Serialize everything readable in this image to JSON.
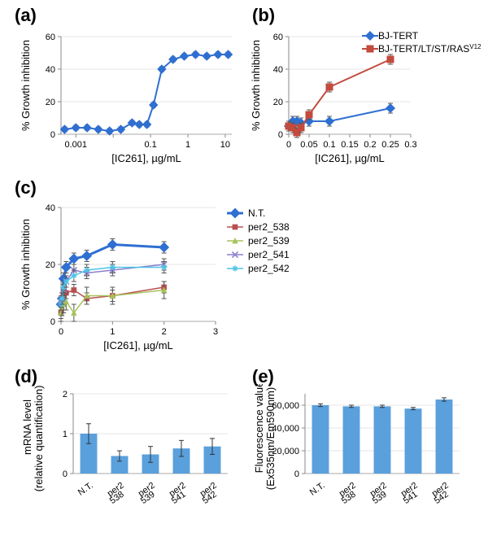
{
  "labels": {
    "a": "(a)",
    "b": "(b)",
    "c": "(c)",
    "d": "(d)",
    "e": "(e)"
  },
  "a": {
    "type": "sigmoid-line-log-x",
    "xlabel": "[IC261], µg/mL",
    "ylabel": "% Growth inhibition",
    "x_ticks": [
      0.001,
      0.01,
      0.1,
      1,
      10
    ],
    "x_tick_labels": [
      "0.001",
      "",
      "0.1",
      "1",
      "10"
    ],
    "y_ticks": [
      0,
      20,
      40,
      60
    ],
    "ylim": [
      0,
      60
    ],
    "series_color": "#2f6fd1",
    "line_width": 2,
    "marker": "diamond",
    "marker_size": 5,
    "err": 1.5,
    "x": [
      0.0005,
      0.001,
      0.002,
      0.004,
      0.008,
      0.016,
      0.032,
      0.05,
      0.08,
      0.12,
      0.2,
      0.4,
      0.8,
      1.6,
      3.2,
      6.4,
      12
    ],
    "y": [
      3,
      4,
      4,
      3,
      2,
      3,
      7,
      6,
      6,
      18,
      40,
      46,
      48,
      49,
      48,
      49,
      49
    ]
  },
  "b": {
    "type": "line-two-series",
    "xlabel": "[IC261], µg/mL",
    "ylabel": "% Growth inhibition",
    "x_ticks": [
      0,
      0.05,
      0.1,
      0.15,
      0.2,
      0.25,
      0.3
    ],
    "y_ticks": [
      0,
      20,
      40,
      60
    ],
    "ylim": [
      0,
      60
    ],
    "series": [
      {
        "name": "BJ-TERT",
        "color": "#2f6fd1",
        "marker": "diamond",
        "marker_size": 8,
        "line_width": 2,
        "err": 3,
        "x": [
          0,
          0.01,
          0.02,
          0.03,
          0.05,
          0.1,
          0.25
        ],
        "y": [
          5,
          8,
          8,
          7,
          8,
          8,
          16
        ]
      },
      {
        "name": "BJ-TERT/LT/ST/RAS^V12",
        "color": "#c34a3d",
        "marker": "square",
        "marker_size": 6,
        "line_width": 2,
        "err": 3,
        "x": [
          0,
          0.01,
          0.02,
          0.03,
          0.05,
          0.1,
          0.25
        ],
        "y": [
          5,
          4,
          1,
          4,
          12,
          29,
          46
        ]
      }
    ]
  },
  "c": {
    "type": "line-multi",
    "xlabel": "[IC261], µg/mL",
    "ylabel": "% Growth inhibition",
    "x_ticks": [
      0,
      1,
      2,
      3
    ],
    "y_ticks": [
      0,
      20,
      40
    ],
    "ylim": [
      0,
      40
    ],
    "x": [
      0,
      0.02,
      0.05,
      0.1,
      0.25,
      0.5,
      1,
      2
    ],
    "series": [
      {
        "name": "N.T.",
        "color": "#2f6fd1",
        "marker": "diamond",
        "marker_size": 8,
        "line_width": 3,
        "err": 2,
        "y": [
          6,
          8,
          15,
          19,
          22,
          23,
          27,
          26
        ]
      },
      {
        "name": "per2_538",
        "color": "#b85050",
        "marker": "square",
        "marker_size": 4,
        "line_width": 1.5,
        "err": 2,
        "y": [
          3,
          6,
          9,
          10,
          11,
          8,
          9,
          12
        ]
      },
      {
        "name": "per2_539",
        "color": "#a6c25a",
        "marker": "triangle",
        "marker_size": 4,
        "line_width": 1.5,
        "err": 3,
        "y": [
          3,
          5,
          6,
          7,
          3,
          9,
          9,
          11
        ]
      },
      {
        "name": "per2_541",
        "color": "#8a7fcf",
        "marker": "x",
        "marker_size": 5,
        "line_width": 1.5,
        "err": 2,
        "y": [
          7,
          8,
          11,
          14,
          18,
          17,
          18,
          20
        ]
      },
      {
        "name": "per2_542",
        "color": "#4fc5e6",
        "marker": "star",
        "marker_size": 5,
        "line_width": 1.5,
        "err": 2,
        "y": [
          6,
          8,
          12,
          14,
          16,
          18,
          19,
          19
        ]
      }
    ]
  },
  "d": {
    "type": "bar",
    "ylabel_line1": "mRNA level",
    "ylabel_line2": "(relative quantification)",
    "y_ticks": [
      0,
      1,
      2
    ],
    "ylim": [
      0,
      2
    ],
    "categories": [
      [
        "N.T."
      ],
      [
        "per2",
        "538"
      ],
      [
        "per2",
        "539"
      ],
      [
        "per2",
        "541"
      ],
      [
        "per2",
        "542"
      ]
    ],
    "values": [
      1.0,
      0.44,
      0.48,
      0.63,
      0.68
    ],
    "err": [
      0.25,
      0.13,
      0.2,
      0.2,
      0.2
    ],
    "bar_color": "#5aa0dc",
    "bar_width": 0.55
  },
  "e": {
    "type": "bar",
    "ylabel_line1": "Fluorescence value",
    "ylabel_line2": "(Ex535nm/Em590nm)",
    "y_ticks": [
      0,
      20000,
      40000,
      60000
    ],
    "y_tick_labels": [
      "0",
      "20,000",
      "40,000",
      "60,000"
    ],
    "ylim": [
      0,
      70000
    ],
    "categories": [
      [
        "N.T."
      ],
      [
        "per2",
        "538"
      ],
      [
        "per2",
        "539"
      ],
      [
        "per2",
        "541"
      ],
      [
        "per2",
        "542"
      ]
    ],
    "values": [
      60000,
      59000,
      59000,
      57000,
      65000
    ],
    "err": [
      1200,
      1000,
      1000,
      1000,
      1500
    ],
    "bar_color": "#5aa0dc",
    "bar_width": 0.55
  },
  "colors": {
    "axis": "#888888",
    "grid": "#cccccc",
    "bg": "#ffffff"
  }
}
